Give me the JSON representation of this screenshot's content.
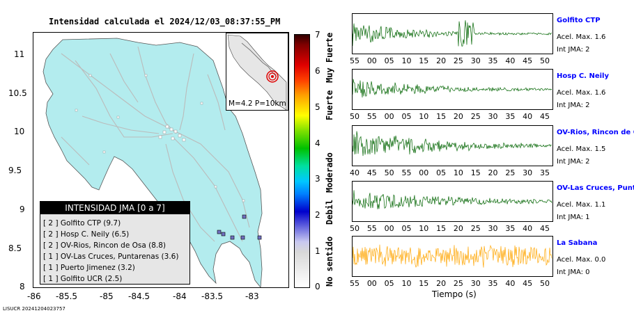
{
  "title": "Intensidad calculada el 2024/12/03_08:37:55_PM",
  "footer": "LISUCR 20241204023757",
  "inset_label": "M=4.2 P=10km",
  "x_label": "Tiempo (s)",
  "map": {
    "xticks": [
      "-86",
      "-85.5",
      "-85",
      "-84.5",
      "-84",
      "-83.5",
      "-83"
    ],
    "yticks": [
      "11",
      "10.5",
      "10",
      "9.5",
      "9",
      "8.5",
      "8"
    ],
    "land_color": "#b3ecee"
  },
  "colorbar": {
    "ticks": [
      "0",
      "1",
      "2",
      "3",
      "4",
      "5",
      "6",
      "7"
    ],
    "bands": [
      "No sentido",
      "Debil",
      "Moderado",
      "Fuerte",
      "Muy Fuerte"
    ]
  },
  "legend": {
    "title": "INTENSIDAD JMA [0 a 7]",
    "rows": [
      "[ 2 ]  Golfito CTP (9.7)",
      "[ 2 ]  Hosp C. Neily (6.5)",
      "[ 2 ]  OV-Rios, Rincon de Osa (8.8)",
      "[ 1 ]  OV-Las Cruces, Puntarenas (3.6)",
      "[ 1 ]  Puerto Jimenez (3.2)",
      "[ 1 ]  Golfito UCR (2.5)"
    ]
  },
  "traces": [
    {
      "name": "Golfito CTP",
      "accel": "Acel. Max. 1.6",
      "int": "Int JMA: 2",
      "color": "#006400",
      "ticks": [
        "55",
        "00",
        "05",
        "10",
        "15",
        "20",
        "25",
        "30",
        "35",
        "40",
        "45",
        "50"
      ]
    },
    {
      "name": "Hosp C. Neily",
      "accel": "Acel. Max. 1.6",
      "int": "Int JMA: 2",
      "color": "#006400",
      "ticks": [
        "50",
        "55",
        "00",
        "05",
        "10",
        "15",
        "20",
        "25",
        "30",
        "35",
        "40",
        "45"
      ]
    },
    {
      "name": "OV-Rios, Rincon de Os",
      "accel": "Acel. Max. 1.5",
      "int": "Int JMA: 2",
      "color": "#006400",
      "ticks": [
        "40",
        "45",
        "50",
        "55",
        "00",
        "05",
        "10",
        "15",
        "20",
        "25",
        "30",
        "35"
      ]
    },
    {
      "name": "OV-Las Cruces, Puntar",
      "accel": "Acel. Max. 1.1",
      "int": "Int JMA: 1",
      "color": "#006400",
      "ticks": [
        "50",
        "55",
        "00",
        "05",
        "10",
        "15",
        "20",
        "25",
        "30",
        "35",
        "40",
        "45"
      ]
    },
    {
      "name": "La Sabana",
      "accel": "Acel. Max. 0.0",
      "int": "Int JMA: 0",
      "color": "#ffa500",
      "ticks": [
        "55",
        "00",
        "05",
        "10",
        "15",
        "20",
        "25",
        "30",
        "35",
        "40",
        "45",
        "50"
      ]
    }
  ],
  "chart_data": {
    "type": "heatmap",
    "title": "Intensidad calculada el 2024/12/03_08:37:55_PM",
    "xlim": [
      -86,
      -82.5
    ],
    "ylim": [
      8,
      11.3
    ],
    "colorbar_range": [
      0,
      7
    ],
    "stations": [
      {
        "name": "Golfito CTP",
        "intensity": 2,
        "distance": 9.7
      },
      {
        "name": "Hosp C. Neily",
        "intensity": 2,
        "distance": 6.5
      },
      {
        "name": "OV-Rios, Rincon de Osa",
        "intensity": 2,
        "distance": 8.8
      },
      {
        "name": "OV-Las Cruces, Puntarenas",
        "intensity": 1,
        "distance": 3.6
      },
      {
        "name": "Puerto Jimenez",
        "intensity": 1,
        "distance": 3.2
      },
      {
        "name": "Golfito UCR",
        "intensity": 1,
        "distance": 2.5
      }
    ],
    "seismograms": [
      {
        "station": "Golfito CTP",
        "accel_max": 1.6,
        "int_jma": 2
      },
      {
        "station": "Hosp C. Neily",
        "accel_max": 1.6,
        "int_jma": 2
      },
      {
        "station": "OV-Rios, Rincon de Os",
        "accel_max": 1.5,
        "int_jma": 2
      },
      {
        "station": "OV-Las Cruces, Puntar",
        "accel_max": 1.1,
        "int_jma": 1
      },
      {
        "station": "La Sabana",
        "accel_max": 0.0,
        "int_jma": 0
      }
    ]
  }
}
